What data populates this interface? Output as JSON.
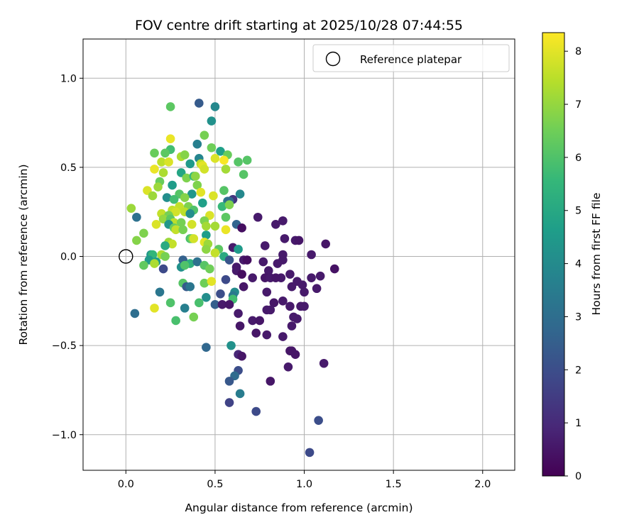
{
  "chart_data": {
    "type": "scatter",
    "title": "FOV centre drift starting at 2025/10/28 07:44:55",
    "xlabel": "Angular distance from reference (arcmin)",
    "ylabel": "Rotation from reference (arcmin)",
    "xlim": [
      -0.24,
      2.18
    ],
    "ylim": [
      -1.2,
      1.22
    ],
    "xticks": [
      0.0,
      0.5,
      1.0,
      1.5,
      2.0
    ],
    "xtick_labels": [
      "0.0",
      "0.5",
      "1.0",
      "1.5",
      "2.0"
    ],
    "yticks": [
      -1.0,
      -0.5,
      0.0,
      0.5,
      1.0
    ],
    "ytick_labels": [
      "−1.0",
      "−0.5",
      "0.0",
      "0.5",
      "1.0"
    ],
    "grid": true,
    "legend": {
      "location": "top-right",
      "entries": [
        "Reference platepar"
      ]
    },
    "reference_point": {
      "x": 0.0,
      "y": 0.0,
      "label": "Reference platepar",
      "marker": "open-circle"
    },
    "colorbar": {
      "label": "Hours from first FF file",
      "colormap": "viridis",
      "range": [
        0,
        8.35
      ],
      "ticks": [
        0,
        1,
        2,
        3,
        4,
        5,
        6,
        7,
        8
      ],
      "tick_labels": [
        "0",
        "1",
        "2",
        "3",
        "4",
        "5",
        "6",
        "7",
        "8"
      ]
    },
    "colormap_stops": [
      "#440154",
      "#482878",
      "#3e4989",
      "#31688e",
      "#26828e",
      "#1f9e89",
      "#35b779",
      "#6ece58",
      "#b5de2b",
      "#fde725"
    ],
    "points": [
      [
        0.41,
        0.86,
        2.4
      ],
      [
        0.5,
        0.84,
        3.9
      ],
      [
        0.25,
        0.84,
        6.2
      ],
      [
        0.48,
        0.76,
        4.2
      ],
      [
        0.44,
        0.68,
        6.6
      ],
      [
        0.25,
        0.66,
        8.1
      ],
      [
        0.4,
        0.63,
        3.6
      ],
      [
        0.48,
        0.61,
        6.5
      ],
      [
        0.25,
        0.6,
        5.8
      ],
      [
        0.16,
        0.58,
        6.4
      ],
      [
        0.22,
        0.58,
        6.2
      ],
      [
        0.53,
        0.59,
        4.7
      ],
      [
        0.57,
        0.57,
        6.4
      ],
      [
        0.31,
        0.56,
        7.3
      ],
      [
        0.33,
        0.57,
        6.8
      ],
      [
        0.41,
        0.55,
        3.8
      ],
      [
        0.42,
        0.52,
        7.5
      ],
      [
        0.5,
        0.55,
        7.9
      ],
      [
        0.55,
        0.54,
        8.3
      ],
      [
        0.63,
        0.53,
        6.1
      ],
      [
        0.68,
        0.54,
        6.1
      ],
      [
        0.2,
        0.53,
        7.5
      ],
      [
        0.24,
        0.53,
        7.9
      ],
      [
        0.36,
        0.52,
        4.5
      ],
      [
        0.43,
        0.51,
        8.0
      ],
      [
        0.44,
        0.49,
        7.8
      ],
      [
        0.56,
        0.49,
        7.2
      ],
      [
        0.16,
        0.49,
        8.1
      ],
      [
        0.21,
        0.47,
        7.3
      ],
      [
        0.31,
        0.47,
        4.9
      ],
      [
        0.34,
        0.44,
        6.7
      ],
      [
        0.38,
        0.45,
        5.6
      ],
      [
        0.39,
        0.45,
        6.9
      ],
      [
        0.66,
        0.46,
        6.1
      ],
      [
        0.19,
        0.42,
        6.4
      ],
      [
        0.26,
        0.4,
        4.6
      ],
      [
        0.4,
        0.4,
        6.7
      ],
      [
        0.18,
        0.39,
        7.1
      ],
      [
        0.42,
        0.36,
        8.0
      ],
      [
        0.12,
        0.37,
        7.9
      ],
      [
        0.3,
        0.35,
        6.1
      ],
      [
        0.37,
        0.35,
        4.4
      ],
      [
        0.55,
        0.37,
        6.1
      ],
      [
        0.64,
        0.35,
        3.9
      ],
      [
        0.15,
        0.34,
        7.1
      ],
      [
        0.23,
        0.33,
        4.1
      ],
      [
        0.27,
        0.32,
        5.8
      ],
      [
        0.33,
        0.33,
        6.8
      ],
      [
        0.49,
        0.34,
        7.9
      ],
      [
        0.57,
        0.31,
        3.4
      ],
      [
        0.6,
        0.32,
        1.3
      ],
      [
        0.58,
        0.31,
        2.8
      ],
      [
        0.43,
        0.3,
        4.7
      ],
      [
        0.54,
        0.28,
        5.6
      ],
      [
        0.58,
        0.29,
        6.7
      ],
      [
        0.03,
        0.27,
        7.1
      ],
      [
        0.3,
        0.28,
        7.6
      ],
      [
        0.35,
        0.28,
        6.7
      ],
      [
        0.38,
        0.26,
        6.0
      ],
      [
        0.26,
        0.26,
        7.6
      ],
      [
        0.28,
        0.25,
        7.8
      ],
      [
        0.33,
        0.25,
        7.5
      ],
      [
        0.2,
        0.24,
        7.6
      ],
      [
        0.24,
        0.23,
        6.6
      ],
      [
        0.36,
        0.24,
        4.1
      ],
      [
        0.47,
        0.23,
        7.9
      ],
      [
        0.74,
        0.22,
        0.6
      ],
      [
        0.06,
        0.22,
        3.1
      ],
      [
        0.21,
        0.21,
        7.0
      ],
      [
        0.25,
        0.21,
        6.2
      ],
      [
        0.56,
        0.22,
        6.2
      ],
      [
        0.88,
        0.2,
        0.6
      ],
      [
        0.27,
        0.19,
        7.5
      ],
      [
        0.31,
        0.19,
        6.6
      ],
      [
        0.44,
        0.2,
        6.7
      ],
      [
        0.62,
        0.18,
        2.7
      ],
      [
        0.84,
        0.18,
        0.6
      ],
      [
        0.17,
        0.18,
        7.9
      ],
      [
        0.24,
        0.18,
        4.4
      ],
      [
        0.37,
        0.18,
        7.8
      ],
      [
        0.45,
        0.17,
        7.2
      ],
      [
        0.5,
        0.17,
        7.2
      ],
      [
        0.27,
        0.16,
        6.4
      ],
      [
        0.28,
        0.15,
        7.6
      ],
      [
        0.32,
        0.15,
        6.6
      ],
      [
        0.65,
        0.16,
        0.3
      ],
      [
        0.56,
        0.15,
        8.1
      ],
      [
        0.1,
        0.13,
        6.7
      ],
      [
        0.45,
        0.12,
        4.6
      ],
      [
        0.36,
        0.1,
        5.9
      ],
      [
        0.37,
        0.1,
        6.5
      ],
      [
        0.38,
        0.1,
        7.8
      ],
      [
        0.89,
        0.1,
        0.6
      ],
      [
        0.95,
        0.09,
        0.6
      ],
      [
        0.97,
        0.09,
        0.5
      ],
      [
        0.06,
        0.09,
        6.8
      ],
      [
        0.24,
        0.08,
        7.1
      ],
      [
        0.44,
        0.08,
        8.0
      ],
      [
        0.26,
        0.07,
        7.6
      ],
      [
        0.46,
        0.07,
        7.1
      ],
      [
        1.12,
        0.07,
        0.5
      ],
      [
        0.22,
        0.06,
        5.1
      ],
      [
        0.78,
        0.06,
        0.6
      ],
      [
        0.6,
        0.05,
        0.6
      ],
      [
        0.45,
        0.04,
        6.9
      ],
      [
        0.52,
        0.04,
        6.2
      ],
      [
        0.63,
        0.04,
        4.5
      ],
      [
        0.5,
        0.02,
        7.6
      ],
      [
        0.14,
        0.01,
        4.4
      ],
      [
        0.15,
        0.01,
        5.5
      ],
      [
        0.2,
        0.01,
        7.3
      ],
      [
        0.22,
        0.0,
        6.6
      ],
      [
        1.04,
        0.01,
        0.6
      ],
      [
        0.88,
        0.01,
        0.6
      ],
      [
        0.55,
        0.0,
        5.1
      ],
      [
        0.13,
        -0.02,
        4.5
      ],
      [
        0.17,
        -0.03,
        4.6
      ],
      [
        0.32,
        -0.02,
        2.6
      ],
      [
        0.58,
        -0.02,
        2.2
      ],
      [
        0.66,
        -0.02,
        0.6
      ],
      [
        0.68,
        -0.02,
        0.3
      ],
      [
        0.77,
        -0.03,
        0.6
      ],
      [
        0.88,
        -0.02,
        0.6
      ],
      [
        0.16,
        -0.04,
        7.3
      ],
      [
        0.36,
        -0.04,
        5.3
      ],
      [
        0.4,
        -0.03,
        3.1
      ],
      [
        0.44,
        -0.05,
        6.1
      ],
      [
        0.47,
        -0.07,
        6.5
      ],
      [
        0.85,
        -0.04,
        0.6
      ],
      [
        0.62,
        -0.06,
        0.6
      ],
      [
        0.1,
        -0.05,
        6.3
      ],
      [
        0.31,
        -0.06,
        4.2
      ],
      [
        0.33,
        -0.05,
        6.0
      ],
      [
        0.21,
        -0.07,
        1.9
      ],
      [
        0.62,
        -0.08,
        0.6
      ],
      [
        0.8,
        -0.08,
        0.6
      ],
      [
        1.17,
        -0.07,
        0.4
      ],
      [
        0.65,
        -0.1,
        0.3
      ],
      [
        0.92,
        -0.1,
        0.6
      ],
      [
        0.78,
        -0.12,
        0.5
      ],
      [
        0.81,
        -0.12,
        0.6
      ],
      [
        0.87,
        -0.12,
        0.6
      ],
      [
        0.71,
        -0.12,
        0.6
      ],
      [
        0.84,
        -0.12,
        0.5
      ],
      [
        1.04,
        -0.12,
        0.6
      ],
      [
        0.56,
        -0.13,
        1.9
      ],
      [
        0.96,
        -0.14,
        0.6
      ],
      [
        1.09,
        -0.11,
        0.6
      ],
      [
        0.32,
        -0.15,
        6.1
      ],
      [
        0.44,
        -0.15,
        6.5
      ],
      [
        0.48,
        -0.14,
        8.0
      ],
      [
        0.99,
        -0.16,
        0.6
      ],
      [
        0.34,
        -0.17,
        2.4
      ],
      [
        0.36,
        -0.17,
        3.3
      ],
      [
        0.66,
        -0.17,
        0.5
      ],
      [
        0.93,
        -0.17,
        0.6
      ],
      [
        1.07,
        -0.18,
        0.6
      ],
      [
        0.19,
        -0.2,
        3.3
      ],
      [
        0.53,
        -0.21,
        2.0
      ],
      [
        0.61,
        -0.2,
        4.0
      ],
      [
        0.79,
        -0.2,
        0.6
      ],
      [
        1.0,
        -0.2,
        0.6
      ],
      [
        0.45,
        -0.23,
        4.1
      ],
      [
        0.6,
        -0.22,
        3.4
      ],
      [
        0.6,
        -0.24,
        5.8
      ],
      [
        0.41,
        -0.26,
        5.9
      ],
      [
        0.25,
        -0.26,
        6.0
      ],
      [
        0.5,
        -0.27,
        2.5
      ],
      [
        0.54,
        -0.27,
        0.6
      ],
      [
        0.58,
        -0.27,
        0.5
      ],
      [
        0.88,
        -0.25,
        0.6
      ],
      [
        0.83,
        -0.26,
        0.5
      ],
      [
        0.16,
        -0.29,
        8.0
      ],
      [
        0.33,
        -0.29,
        3.6
      ],
      [
        0.79,
        -0.3,
        0.6
      ],
      [
        0.81,
        -0.3,
        0.6
      ],
      [
        0.92,
        -0.28,
        0.6
      ],
      [
        0.98,
        -0.28,
        0.6
      ],
      [
        1.0,
        -0.28,
        0.6
      ],
      [
        0.05,
        -0.32,
        3.0
      ],
      [
        0.63,
        -0.32,
        0.6
      ],
      [
        0.38,
        -0.34,
        6.6
      ],
      [
        0.94,
        -0.34,
        0.6
      ],
      [
        0.96,
        -0.35,
        0.6
      ],
      [
        0.28,
        -0.36,
        5.9
      ],
      [
        0.71,
        -0.36,
        0.6
      ],
      [
        0.75,
        -0.36,
        0.5
      ],
      [
        0.64,
        -0.39,
        0.5
      ],
      [
        0.93,
        -0.39,
        0.6
      ],
      [
        0.73,
        -0.43,
        0.5
      ],
      [
        0.79,
        -0.44,
        0.6
      ],
      [
        0.88,
        -0.45,
        0.6
      ],
      [
        0.45,
        -0.51,
        2.8
      ],
      [
        0.59,
        -0.5,
        4.2
      ],
      [
        0.92,
        -0.53,
        0.5
      ],
      [
        0.93,
        -0.53,
        0.5
      ],
      [
        0.95,
        -0.55,
        0.5
      ],
      [
        0.63,
        -0.55,
        0.9
      ],
      [
        0.65,
        -0.56,
        0.5
      ],
      [
        1.11,
        -0.6,
        0.6
      ],
      [
        0.91,
        -0.62,
        0.6
      ],
      [
        0.63,
        -0.64,
        2.0
      ],
      [
        0.61,
        -0.67,
        2.9
      ],
      [
        0.58,
        -0.7,
        2.3
      ],
      [
        0.81,
        -0.7,
        0.5
      ],
      [
        0.64,
        -0.77,
        3.5
      ],
      [
        0.58,
        -0.82,
        1.7
      ],
      [
        0.73,
        -0.87,
        1.9
      ],
      [
        1.08,
        -0.92,
        2.0
      ],
      [
        1.03,
        -1.1,
        1.9
      ]
    ]
  }
}
